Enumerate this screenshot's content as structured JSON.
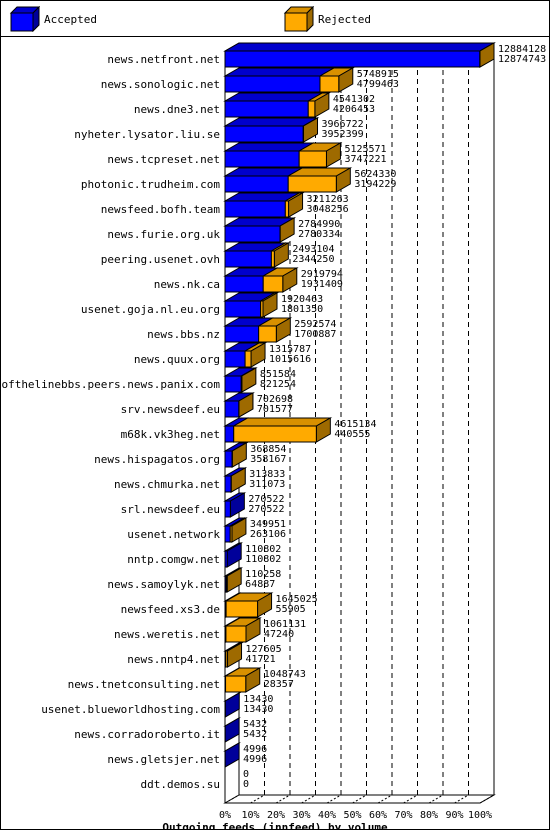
{
  "legend": {
    "accepted": "Accepted",
    "rejected": "Rejected"
  },
  "colors": {
    "accepted_front": "#0000ff",
    "accepted_top": "#0000cc",
    "accepted_side": "#00009a",
    "rejected_front": "#ffaa00",
    "rejected_top": "#d89000",
    "rejected_side": "#9e6a00"
  },
  "chart_data": {
    "type": "bar",
    "orientation": "horizontal",
    "stacked": true,
    "xlabel": "Outgoing feeds (innfeed) by volume",
    "xlim": [
      0,
      100
    ],
    "x_ticks": [
      "0%",
      "10%",
      "20%",
      "30%",
      "40%",
      "50%",
      "60%",
      "70%",
      "80%",
      "90%",
      "100%"
    ],
    "series": [
      {
        "name": "Accepted"
      },
      {
        "name": "Rejected"
      }
    ],
    "rows": [
      {
        "label": "news.netfront.net",
        "offered": 12884128,
        "accepted": 12874743
      },
      {
        "label": "news.sonologic.net",
        "offered": 5748915,
        "accepted": 4799463
      },
      {
        "label": "news.dne3.net",
        "offered": 4541302,
        "accepted": 4206453
      },
      {
        "label": "nyheter.lysator.liu.se",
        "offered": 3966722,
        "accepted": 3952399
      },
      {
        "label": "news.tcpreset.net",
        "offered": 5125571,
        "accepted": 3747221
      },
      {
        "label": "photonic.trudheim.com",
        "offered": 5624330,
        "accepted": 3194229
      },
      {
        "label": "newsfeed.bofh.team",
        "offered": 3211263,
        "accepted": 3048256
      },
      {
        "label": "news.furie.org.uk",
        "offered": 2784990,
        "accepted": 2780334
      },
      {
        "label": "peering.usenet.ovh",
        "offered": 2493104,
        "accepted": 2344250
      },
      {
        "label": "news.nk.ca",
        "offered": 2919794,
        "accepted": 1931409
      },
      {
        "label": "usenet.goja.nl.eu.org",
        "offered": 1920463,
        "accepted": 1801350
      },
      {
        "label": "news.bbs.nz",
        "offered": 2592574,
        "accepted": 1700887
      },
      {
        "label": "news.quux.org",
        "offered": 1315787,
        "accepted": 1015616
      },
      {
        "label": "endofthelinebbs.peers.news.panix.com",
        "offered": 851584,
        "accepted": 821254
      },
      {
        "label": "srv.newsdeef.eu",
        "offered": 702698,
        "accepted": 701577
      },
      {
        "label": "m68k.vk3heg.net",
        "offered": 4615134,
        "accepted": 440555
      },
      {
        "label": "news.hispagatos.org",
        "offered": 368854,
        "accepted": 358167
      },
      {
        "label": "news.chmurka.net",
        "offered": 313833,
        "accepted": 311073
      },
      {
        "label": "srl.newsdeef.eu",
        "offered": 270522,
        "accepted": 270522
      },
      {
        "label": "usenet.network",
        "offered": 349951,
        "accepted": 263106
      },
      {
        "label": "nntp.comgw.net",
        "offered": 110802,
        "accepted": 110802
      },
      {
        "label": "news.samoylyk.net",
        "offered": 110258,
        "accepted": 64887
      },
      {
        "label": "newsfeed.xs3.de",
        "offered": 1645025,
        "accepted": 55905
      },
      {
        "label": "news.weretis.net",
        "offered": 1061131,
        "accepted": 47240
      },
      {
        "label": "news.nntp4.net",
        "offered": 127605,
        "accepted": 41721
      },
      {
        "label": "news.tnetconsulting.net",
        "offered": 1048743,
        "accepted": 28357
      },
      {
        "label": "usenet.blueworldhosting.com",
        "offered": 13430,
        "accepted": 13430
      },
      {
        "label": "news.corradoroberto.it",
        "offered": 5432,
        "accepted": 5432
      },
      {
        "label": "news.gletsjer.net",
        "offered": 4996,
        "accepted": 4996
      },
      {
        "label": "ddt.demos.su",
        "offered": 0,
        "accepted": 0
      }
    ]
  }
}
